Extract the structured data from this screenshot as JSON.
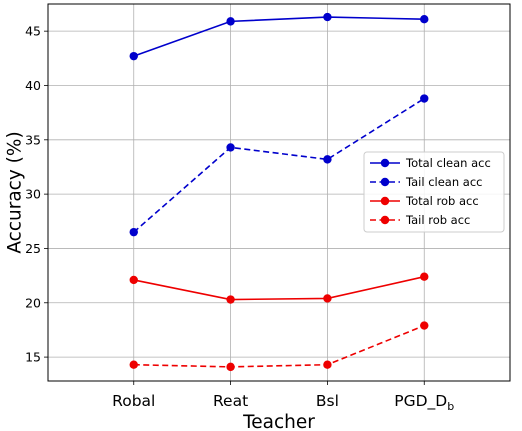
{
  "chart_data": {
    "type": "line",
    "title": "",
    "xlabel": "Teacher",
    "ylabel": "Accuracy (%)",
    "categories": [
      "Robal",
      "Reat",
      "Bsl",
      "PGD_Db"
    ],
    "ylim": [
      12.8,
      47.5
    ],
    "yticks": [
      15,
      20,
      25,
      30,
      35,
      40,
      45
    ],
    "grid": true,
    "legend_position": "center-right",
    "series": [
      {
        "name": "Total clean acc",
        "values": [
          42.7,
          45.9,
          46.3,
          46.1
        ],
        "color": "#0000cc",
        "linestyle": "solid"
      },
      {
        "name": "Tail clean acc",
        "values": [
          26.5,
          34.3,
          33.2,
          38.8
        ],
        "color": "#0000cc",
        "linestyle": "dashed"
      },
      {
        "name": "Total rob acc",
        "values": [
          22.1,
          20.3,
          20.4,
          22.4
        ],
        "color": "#ee0000",
        "linestyle": "solid"
      },
      {
        "name": "Tail rob acc",
        "values": [
          14.3,
          14.1,
          14.3,
          17.9
        ],
        "color": "#ee0000",
        "linestyle": "dashed"
      }
    ]
  }
}
